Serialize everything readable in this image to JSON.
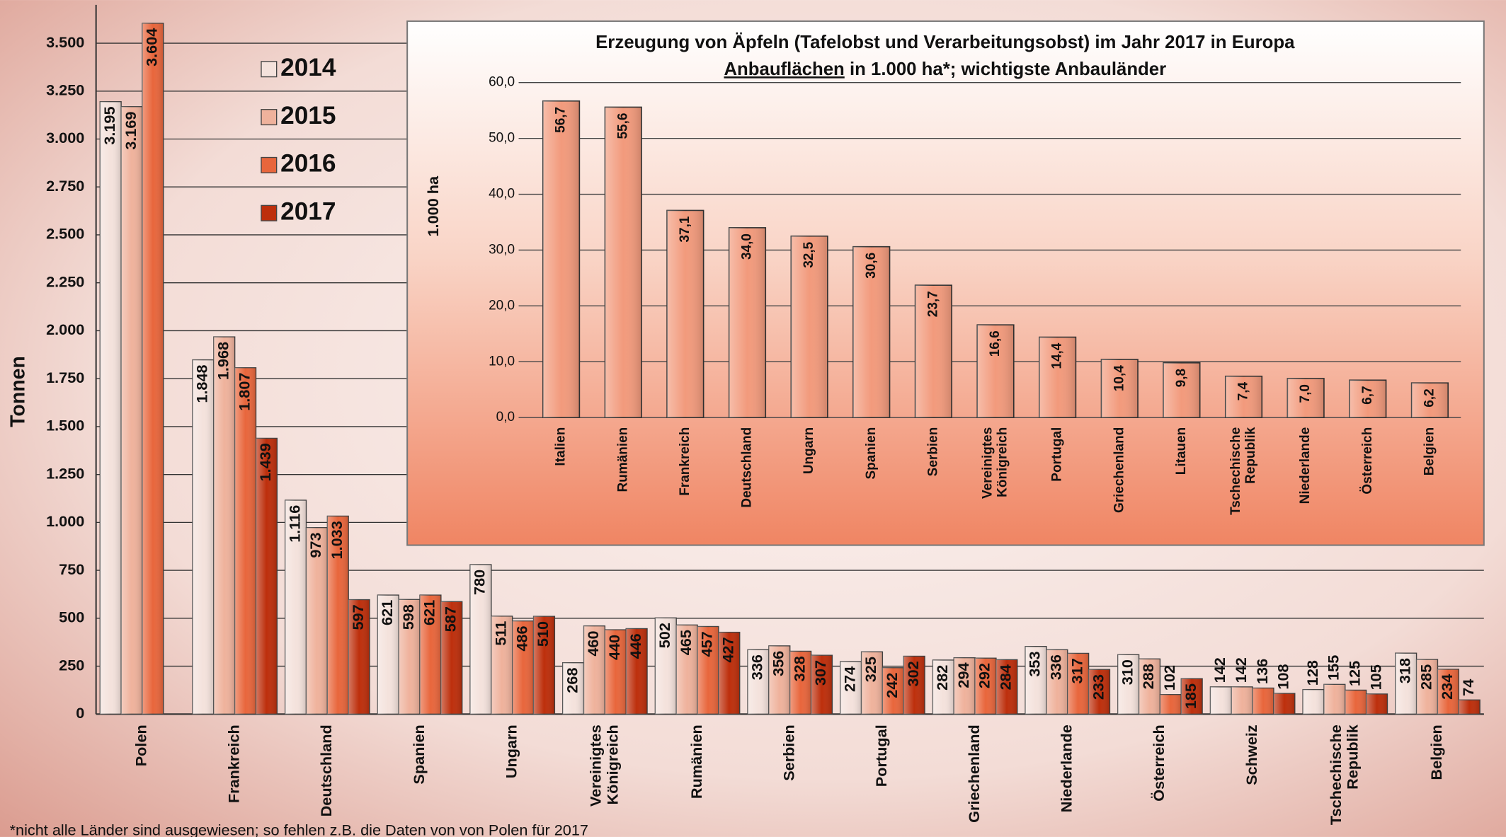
{
  "chart_data": [
    {
      "type": "bar",
      "y_label": "Tonnen",
      "categories": [
        "Polen",
        "Frankreich",
        "Deutschland",
        "Spanien",
        "Ungarn",
        "Vereinigtes Königreich",
        "Rumänien",
        "Serbien",
        "Portugal",
        "Griechenland",
        "Niederlande",
        "Österreich",
        "Schweiz",
        "Tschechische Republik",
        "Belgien"
      ],
      "series": [
        {
          "name": "2014",
          "color": "#f4e2dc",
          "values": [
            3195,
            1848,
            1116,
            621,
            780,
            268,
            502,
            336,
            274,
            282,
            353,
            310,
            142,
            128,
            318
          ],
          "value_labels": [
            "3.195",
            "1.848",
            "1.116",
            "621",
            "780",
            "268",
            "502",
            "336",
            "274",
            "282",
            "353",
            "310",
            "142",
            "128",
            "318"
          ]
        },
        {
          "name": "2015",
          "color": "#efb29c",
          "values": [
            3169,
            1968,
            973,
            598,
            511,
            460,
            465,
            356,
            325,
            294,
            336,
            288,
            142,
            155,
            285
          ],
          "value_labels": [
            "3.169",
            "1.968",
            "973",
            "598",
            "511",
            "460",
            "465",
            "356",
            "325",
            "294",
            "336",
            "288",
            "142",
            "155",
            "285"
          ]
        },
        {
          "name": "2016",
          "color": "#e8663c",
          "values": [
            3604,
            1807,
            1033,
            621,
            486,
            440,
            457,
            328,
            242,
            292,
            317,
            102,
            136,
            125,
            234
          ],
          "value_labels": [
            "3.604",
            "1.807",
            "1.033",
            "621",
            "486",
            "440",
            "457",
            "328",
            "242",
            "292",
            "317",
            "102",
            "136",
            "125",
            "234"
          ]
        },
        {
          "name": "2017",
          "color": "#bd2f0c",
          "values": [
            null,
            1439,
            597,
            587,
            510,
            446,
            427,
            307,
            302,
            284,
            233,
            185,
            108,
            105,
            74
          ],
          "value_labels": [
            null,
            "1.439",
            "597",
            "587",
            "510",
            "446",
            "427",
            "307",
            "302",
            "284",
            "233",
            "185",
            "108",
            "105",
            "74"
          ]
        }
      ],
      "ylim": [
        0,
        3700
      ],
      "yticks": [
        0,
        250,
        500,
        750,
        {
          "value": 1000,
          "label": "1.000"
        },
        {
          "value": 1250,
          "label": "1.250"
        },
        {
          "value": 1500,
          "label": "1.500"
        },
        {
          "value": 1750,
          "label": "1.750"
        },
        {
          "value": 2000,
          "label": "2.000"
        },
        {
          "value": 2250,
          "label": "2.250"
        },
        {
          "value": 2500,
          "label": "2.500"
        },
        {
          "value": 2750,
          "label": "2.750"
        },
        {
          "value": 3000,
          "label": "3.000"
        },
        {
          "value": 3250,
          "label": "3.250"
        },
        {
          "value": 3500,
          "label": "3.500"
        }
      ],
      "grid": true,
      "legend": "upper left"
    },
    {
      "type": "bar",
      "title": "Erzeugung von Äpfeln (Tafelobst und Verarbeitungsobst) im Jahr 2017 in Europa",
      "subtitle_underlined": "Anbauflächen",
      "subtitle": "in 1.000 ha*; wichtigste Anbauländer",
      "y_label": "1.000 ha",
      "color": "#f29a7c",
      "categories": [
        "Italien",
        "Rumänien",
        "Frankreich",
        "Deutschland",
        "Ungarn",
        "Spanien",
        "Serbien",
        "Vereinigtes Königreich",
        "Portugal",
        "Griechenland",
        "Litauen",
        "Tschechische Republik",
        "Niederlande",
        "Österreich",
        "Belgien"
      ],
      "values": [
        56.7,
        55.6,
        37.1,
        34.0,
        32.5,
        30.6,
        23.7,
        16.6,
        14.4,
        10.4,
        9.8,
        7.4,
        7.0,
        6.7,
        6.2
      ],
      "value_labels": [
        "56,7",
        "55,6",
        "37,1",
        "34,0",
        "32,5",
        "30,6",
        "23,7",
        "16,6",
        "14,4",
        "10,4",
        "9,8",
        "7,4",
        "7,0",
        "6,7",
        "6,2"
      ],
      "ylim": [
        0,
        60
      ],
      "yticks": [
        {
          "value": 0,
          "label": "0,0"
        },
        {
          "value": 10,
          "label": "10,0"
        },
        {
          "value": 20,
          "label": "20,0"
        },
        {
          "value": 30,
          "label": "30,0"
        },
        {
          "value": 40,
          "label": "40,0"
        },
        {
          "value": 50,
          "label": "50,0"
        },
        {
          "value": 60,
          "label": "60,0"
        }
      ],
      "grid": true
    }
  ],
  "footnote": "*nicht alle Länder sind ausgewiesen; so fehlen z.B. die Daten von von Polen für 2017"
}
